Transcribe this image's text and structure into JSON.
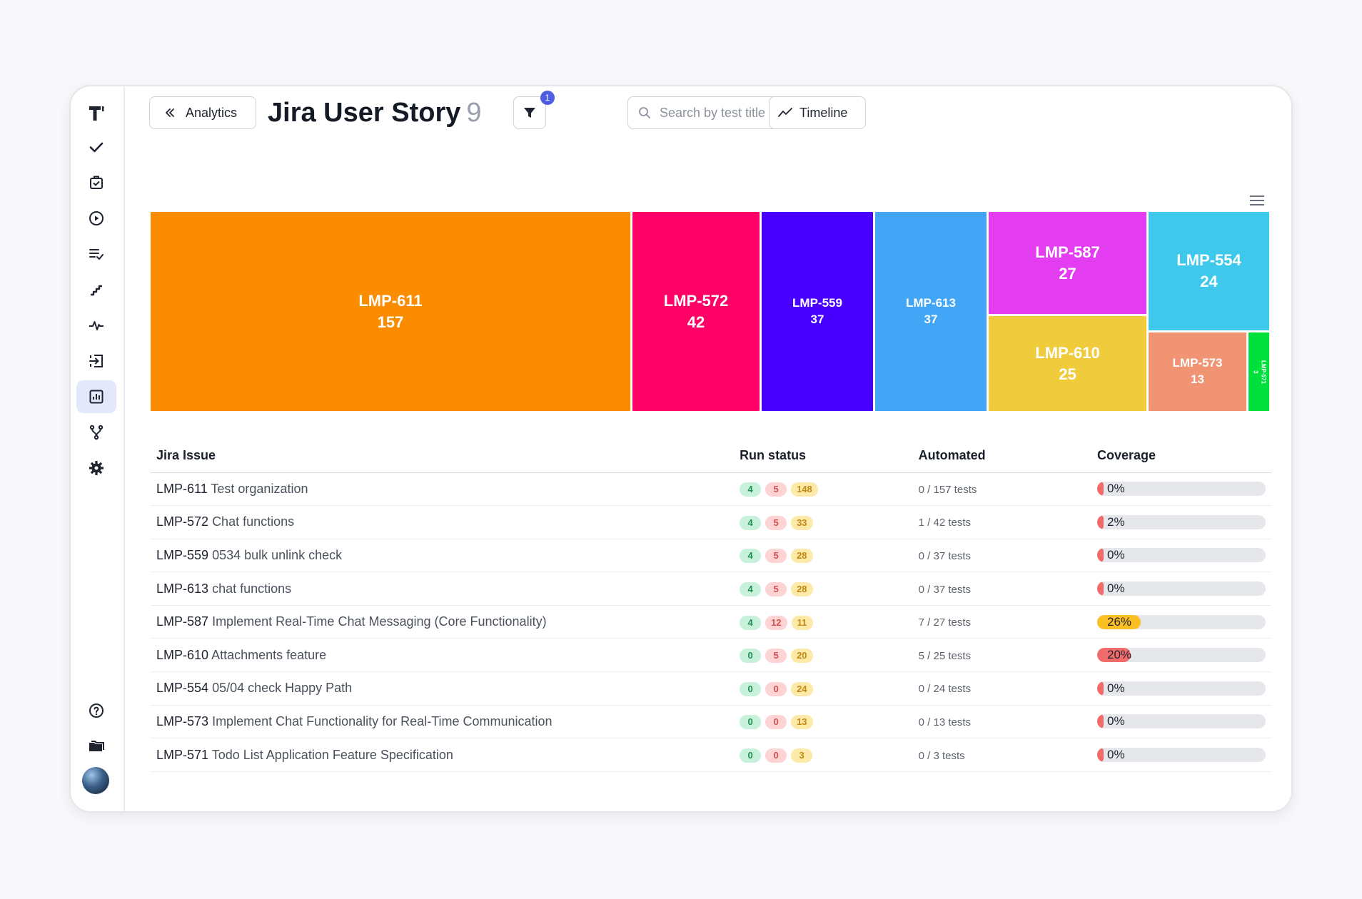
{
  "header": {
    "back_label": "Analytics",
    "title": "Jira User Story",
    "count": "9",
    "filter_badge": "1",
    "search_placeholder": "Search by test title",
    "timeline_label": "Timeline"
  },
  "sidebar": {
    "items": [
      {
        "name": "tests-icon"
      },
      {
        "name": "suites-icon"
      },
      {
        "name": "runs-icon"
      },
      {
        "name": "plans-icon"
      },
      {
        "name": "steps-icon"
      },
      {
        "name": "pulse-icon"
      },
      {
        "name": "imports-icon"
      },
      {
        "name": "analytics-icon",
        "active": true
      },
      {
        "name": "branches-icon"
      },
      {
        "name": "settings-icon"
      }
    ],
    "bottom": [
      {
        "name": "help-icon"
      },
      {
        "name": "projects-icon"
      }
    ]
  },
  "colors": {
    "accent": "#4f5de0",
    "pass": "#1e8f53",
    "fail": "#d0504f",
    "skip": "#c18a12"
  },
  "chart_data": {
    "type": "treemap",
    "tiles": [
      {
        "label": "LMP-611",
        "value": 157,
        "color": "#fb8c00"
      },
      {
        "label": "LMP-572",
        "value": 42,
        "color": "#ff0066"
      },
      {
        "label": "LMP-559",
        "value": 37,
        "color": "#4700ff"
      },
      {
        "label": "LMP-613",
        "value": 37,
        "color": "#42a5f5"
      },
      {
        "label": "LMP-587",
        "value": 27,
        "color": "#e43cf0"
      },
      {
        "label": "LMP-554",
        "value": 24,
        "color": "#3ec8ec"
      },
      {
        "label": "LMP-610",
        "value": 25,
        "color": "#f0cc3c"
      },
      {
        "label": "LMP-573",
        "value": 13,
        "color": "#f09474"
      },
      {
        "label": "LMP-571",
        "value": 3,
        "color": "#00e03c"
      }
    ]
  },
  "table": {
    "headers": [
      "Jira Issue",
      "Run status",
      "Automated",
      "Coverage"
    ],
    "rows": [
      {
        "key": "LMP-611",
        "title": "Test organization",
        "pass": "4",
        "fail": "5",
        "skip": "148",
        "automated": "0 / 157 tests",
        "coverage": "0%",
        "coverage_value": 0
      },
      {
        "key": "LMP-572",
        "title": "Chat functions",
        "pass": "4",
        "fail": "5",
        "skip": "33",
        "automated": "1 / 42 tests",
        "coverage": "2%",
        "coverage_value": 2
      },
      {
        "key": "LMP-559",
        "title": "0534 bulk unlink check",
        "pass": "4",
        "fail": "5",
        "skip": "28",
        "automated": "0 / 37 tests",
        "coverage": "0%",
        "coverage_value": 0
      },
      {
        "key": "LMP-613",
        "title": "chat functions",
        "pass": "4",
        "fail": "5",
        "skip": "28",
        "automated": "0 / 37 tests",
        "coverage": "0%",
        "coverage_value": 0
      },
      {
        "key": "LMP-587",
        "title": "Implement Real-Time Chat Messaging (Core Functionality)",
        "pass": "4",
        "fail": "12",
        "skip": "11",
        "automated": "7 / 27 tests",
        "coverage": "26%",
        "coverage_value": 26
      },
      {
        "key": "LMP-610",
        "title": "Attachments feature",
        "pass": "0",
        "fail": "5",
        "skip": "20",
        "automated": "5 / 25 tests",
        "coverage": "20%",
        "coverage_value": 20
      },
      {
        "key": "LMP-554",
        "title": "05/04 check Happy Path",
        "pass": "0",
        "fail": "0",
        "skip": "24",
        "automated": "0 / 24 tests",
        "coverage": "0%",
        "coverage_value": 0
      },
      {
        "key": "LMP-573",
        "title": "Implement Chat Functionality for Real-Time Communication",
        "pass": "0",
        "fail": "0",
        "skip": "13",
        "automated": "0 / 13 tests",
        "coverage": "0%",
        "coverage_value": 0
      },
      {
        "key": "LMP-571",
        "title": "Todo List Application Feature Specification",
        "pass": "0",
        "fail": "0",
        "skip": "3",
        "automated": "0 / 3 tests",
        "coverage": "0%",
        "coverage_value": 0
      }
    ]
  }
}
